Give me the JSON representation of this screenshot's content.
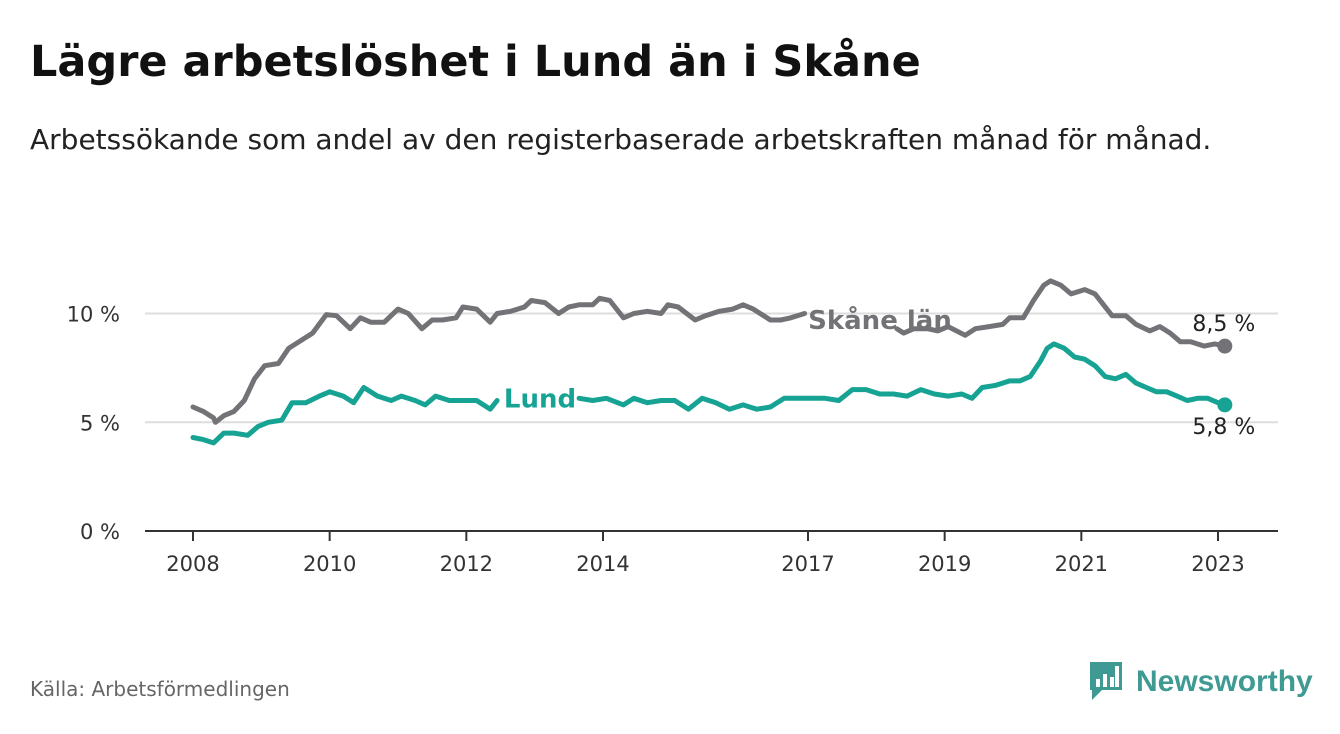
{
  "header": {
    "title": "Lägre arbetslöshet i Lund än i Skåne",
    "subtitle": "Arbetssökande som andel av den registerbaserade arbetskraften månad för månad."
  },
  "footer": {
    "source": "Källa: Arbetsförmedlingen",
    "brand": "Newsworthy",
    "brand_icon": "bar-chart-logo-icon"
  },
  "colors": {
    "skane": "#737277",
    "lund": "#16a394",
    "grid": "#dddddd",
    "axis": "#333333",
    "brand": "#3f9a93"
  },
  "chart_data": {
    "type": "line",
    "title": "Lägre arbetslöshet i Lund än i Skåne",
    "subtitle": "Arbetssökande som andel av den registerbaserade arbetskraften månad för månad.",
    "xlabel": "",
    "ylabel": "",
    "ylim": [
      0,
      12
    ],
    "xlim": [
      2008,
      2023.85
    ],
    "grid": true,
    "y_ticks": [
      {
        "value": 0,
        "label": "0 %"
      },
      {
        "value": 5,
        "label": "5 %"
      },
      {
        "value": 10,
        "label": "10 %"
      }
    ],
    "x_ticks": [
      {
        "value": 2008,
        "label": "2008"
      },
      {
        "value": 2010,
        "label": "2010"
      },
      {
        "value": 2012,
        "label": "2012"
      },
      {
        "value": 2014,
        "label": "2014"
      },
      {
        "value": 2017,
        "label": "2017"
      },
      {
        "value": 2019,
        "label": "2019"
      },
      {
        "value": 2021,
        "label": "2021"
      },
      {
        "value": 2023,
        "label": "2023"
      }
    ],
    "series": [
      {
        "name": "Skåne län",
        "key": "skane",
        "inline_label": "Skåne län",
        "end_label": "8,5 %",
        "points": [
          [
            2008.0,
            5.7
          ],
          [
            2008.15,
            5.5
          ],
          [
            2008.3,
            5.2
          ],
          [
            2008.33,
            5.0
          ],
          [
            2008.45,
            5.3
          ],
          [
            2008.6,
            5.5
          ],
          [
            2008.75,
            6.0
          ],
          [
            2008.9,
            7.0
          ],
          [
            2009.05,
            7.6
          ],
          [
            2009.25,
            7.7
          ],
          [
            2009.4,
            8.4
          ],
          [
            2009.55,
            8.7
          ],
          [
            2009.75,
            9.1
          ],
          [
            2009.95,
            9.95
          ],
          [
            2010.1,
            9.9
          ],
          [
            2010.3,
            9.3
          ],
          [
            2010.45,
            9.8
          ],
          [
            2010.6,
            9.6
          ],
          [
            2010.8,
            9.6
          ],
          [
            2011.0,
            10.2
          ],
          [
            2011.15,
            10.0
          ],
          [
            2011.35,
            9.3
          ],
          [
            2011.5,
            9.7
          ],
          [
            2011.65,
            9.7
          ],
          [
            2011.85,
            9.8
          ],
          [
            2011.95,
            10.3
          ],
          [
            2012.15,
            10.2
          ],
          [
            2012.35,
            9.6
          ],
          [
            2012.45,
            10.0
          ],
          [
            2012.65,
            10.1
          ],
          [
            2012.85,
            10.3
          ],
          [
            2012.95,
            10.6
          ],
          [
            2013.15,
            10.5
          ],
          [
            2013.35,
            10.0
          ],
          [
            2013.5,
            10.3
          ],
          [
            2013.65,
            10.4
          ],
          [
            2013.85,
            10.4
          ],
          [
            2013.95,
            10.7
          ],
          [
            2014.1,
            10.6
          ],
          [
            2014.3,
            9.8
          ],
          [
            2014.45,
            10.0
          ],
          [
            2014.65,
            10.1
          ],
          [
            2014.85,
            10.0
          ],
          [
            2014.95,
            10.4
          ],
          [
            2015.1,
            10.3
          ],
          [
            2015.35,
            9.7
          ],
          [
            2015.5,
            9.9
          ],
          [
            2015.7,
            10.1
          ],
          [
            2015.9,
            10.2
          ],
          [
            2016.05,
            10.4
          ],
          [
            2016.2,
            10.2
          ],
          [
            2016.45,
            9.7
          ],
          [
            2016.6,
            9.7
          ],
          [
            2016.75,
            9.8
          ],
          [
            2016.95,
            10.0
          ],
          [
            2018.3,
            9.3
          ],
          [
            2018.4,
            9.1
          ],
          [
            2018.55,
            9.3
          ],
          [
            2018.75,
            9.3
          ],
          [
            2018.9,
            9.2
          ],
          [
            2019.05,
            9.4
          ],
          [
            2019.3,
            9.0
          ],
          [
            2019.45,
            9.3
          ],
          [
            2019.65,
            9.4
          ],
          [
            2019.85,
            9.5
          ],
          [
            2019.95,
            9.8
          ],
          [
            2020.15,
            9.8
          ],
          [
            2020.3,
            10.6
          ],
          [
            2020.45,
            11.3
          ],
          [
            2020.55,
            11.5
          ],
          [
            2020.7,
            11.3
          ],
          [
            2020.85,
            10.9
          ],
          [
            2021.05,
            11.1
          ],
          [
            2021.2,
            10.9
          ],
          [
            2021.45,
            9.9
          ],
          [
            2021.65,
            9.9
          ],
          [
            2021.8,
            9.5
          ],
          [
            2022.0,
            9.2
          ],
          [
            2022.15,
            9.4
          ],
          [
            2022.3,
            9.1
          ],
          [
            2022.45,
            8.7
          ],
          [
            2022.6,
            8.7
          ],
          [
            2022.8,
            8.5
          ],
          [
            2022.95,
            8.6
          ],
          [
            2023.1,
            8.5
          ]
        ]
      },
      {
        "name": "Lund",
        "key": "lund",
        "inline_label": "Lund",
        "end_label": "5,8 %",
        "points": [
          [
            2008.0,
            4.3
          ],
          [
            2008.15,
            4.2
          ],
          [
            2008.3,
            4.05
          ],
          [
            2008.45,
            4.5
          ],
          [
            2008.6,
            4.5
          ],
          [
            2008.8,
            4.4
          ],
          [
            2008.95,
            4.8
          ],
          [
            2009.1,
            5.0
          ],
          [
            2009.3,
            5.1
          ],
          [
            2009.45,
            5.9
          ],
          [
            2009.65,
            5.9
          ],
          [
            2009.85,
            6.2
          ],
          [
            2010.0,
            6.4
          ],
          [
            2010.2,
            6.2
          ],
          [
            2010.35,
            5.9
          ],
          [
            2010.5,
            6.6
          ],
          [
            2010.7,
            6.2
          ],
          [
            2010.9,
            6.0
          ],
          [
            2011.05,
            6.2
          ],
          [
            2011.25,
            6.0
          ],
          [
            2011.4,
            5.8
          ],
          [
            2011.55,
            6.2
          ],
          [
            2011.75,
            6.0
          ],
          [
            2011.95,
            6.0
          ],
          [
            2012.15,
            6.0
          ],
          [
            2012.35,
            5.6
          ],
          [
            2012.45,
            6.0
          ],
          [
            2013.65,
            6.1
          ],
          [
            2013.85,
            6.0
          ],
          [
            2014.05,
            6.1
          ],
          [
            2014.3,
            5.8
          ],
          [
            2014.45,
            6.1
          ],
          [
            2014.65,
            5.9
          ],
          [
            2014.85,
            6.0
          ],
          [
            2015.05,
            6.0
          ],
          [
            2015.25,
            5.6
          ],
          [
            2015.45,
            6.1
          ],
          [
            2015.65,
            5.9
          ],
          [
            2015.85,
            5.6
          ],
          [
            2016.05,
            5.8
          ],
          [
            2016.25,
            5.6
          ],
          [
            2016.45,
            5.7
          ],
          [
            2016.65,
            6.1
          ],
          [
            2016.85,
            6.1
          ],
          [
            2017.05,
            6.1
          ],
          [
            2017.25,
            6.1
          ],
          [
            2017.45,
            6.0
          ],
          [
            2017.65,
            6.5
          ],
          [
            2017.85,
            6.5
          ],
          [
            2018.05,
            6.3
          ],
          [
            2018.25,
            6.3
          ],
          [
            2018.45,
            6.2
          ],
          [
            2018.65,
            6.5
          ],
          [
            2018.85,
            6.3
          ],
          [
            2019.05,
            6.2
          ],
          [
            2019.25,
            6.3
          ],
          [
            2019.4,
            6.1
          ],
          [
            2019.55,
            6.6
          ],
          [
            2019.75,
            6.7
          ],
          [
            2019.95,
            6.9
          ],
          [
            2020.1,
            6.9
          ],
          [
            2020.25,
            7.1
          ],
          [
            2020.4,
            7.8
          ],
          [
            2020.5,
            8.4
          ],
          [
            2020.6,
            8.6
          ],
          [
            2020.75,
            8.4
          ],
          [
            2020.9,
            8.0
          ],
          [
            2021.05,
            7.9
          ],
          [
            2021.2,
            7.6
          ],
          [
            2021.35,
            7.1
          ],
          [
            2021.5,
            7.0
          ],
          [
            2021.65,
            7.2
          ],
          [
            2021.8,
            6.8
          ],
          [
            2021.95,
            6.6
          ],
          [
            2022.1,
            6.4
          ],
          [
            2022.25,
            6.4
          ],
          [
            2022.4,
            6.2
          ],
          [
            2022.55,
            6.0
          ],
          [
            2022.7,
            6.1
          ],
          [
            2022.85,
            6.1
          ],
          [
            2023.0,
            5.9
          ],
          [
            2023.1,
            5.8
          ]
        ]
      }
    ]
  }
}
